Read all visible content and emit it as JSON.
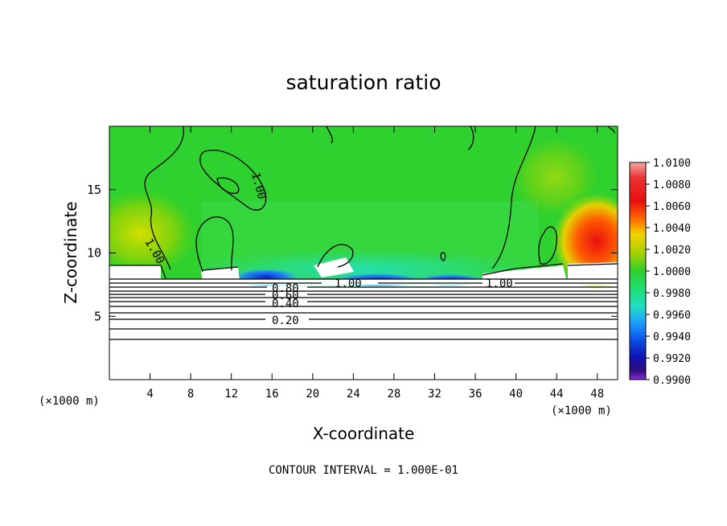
{
  "chart_data": {
    "type": "heatmap",
    "title": "saturation ratio",
    "xlabel": "X-coordinate",
    "ylabel": "Z-coordinate",
    "x_unit": "(×1000 m)",
    "y_unit": "(×1000 m)",
    "xlim": [
      0,
      50
    ],
    "ylim": [
      0,
      20
    ],
    "x_ticks": [
      "4",
      "8",
      "12",
      "16",
      "20",
      "24",
      "28",
      "32",
      "36",
      "40",
      "44",
      "48"
    ],
    "y_ticks": [
      "5",
      "10",
      "15"
    ],
    "colorbar": {
      "min": 0.99,
      "max": 1.01,
      "labels": [
        "1.0100",
        "1.0080",
        "1.0060",
        "1.0040",
        "1.0020",
        "1.0000",
        "0.9980",
        "0.9960",
        "0.9940",
        "0.9920",
        "0.9900"
      ]
    },
    "contour_labels": [
      "1.00",
      "1.00",
      "1.00",
      "1.00",
      "0.80",
      "0.60",
      "0.40",
      "0.20"
    ],
    "contour_interval_text": "CONTOUR INTERVAL = 1.000E-01",
    "grid": false,
    "legend": "right colorbar"
  }
}
